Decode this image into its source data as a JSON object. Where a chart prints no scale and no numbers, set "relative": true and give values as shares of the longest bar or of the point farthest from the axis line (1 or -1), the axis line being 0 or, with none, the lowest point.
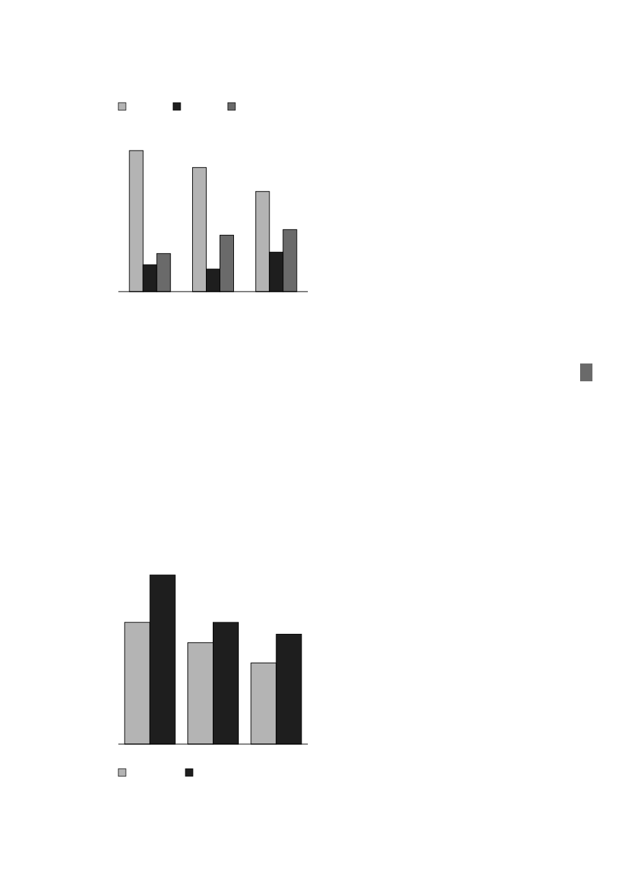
{
  "chart_data": [
    {
      "type": "bar",
      "relative": true,
      "categories": [
        null,
        null,
        null
      ],
      "series": [
        {
          "color": "#b4b4b4",
          "values": [
            1,
            0.88,
            0.71
          ]
        },
        {
          "color": "#1e1e1e",
          "values": [
            0.19,
            0.16,
            0.28
          ]
        },
        {
          "color": "#6a6a6a",
          "values": [
            0.27,
            0.4,
            0.44
          ]
        }
      ]
    },
    {
      "type": "bar",
      "relative": true,
      "categories": [
        null,
        null,
        null
      ],
      "series": [
        {
          "color": "#b4b4b4",
          "values": [
            0.72,
            0.6,
            0.48
          ]
        },
        {
          "color": "#1e1e1e",
          "values": [
            1,
            0.72,
            0.65
          ]
        }
      ]
    }
  ]
}
